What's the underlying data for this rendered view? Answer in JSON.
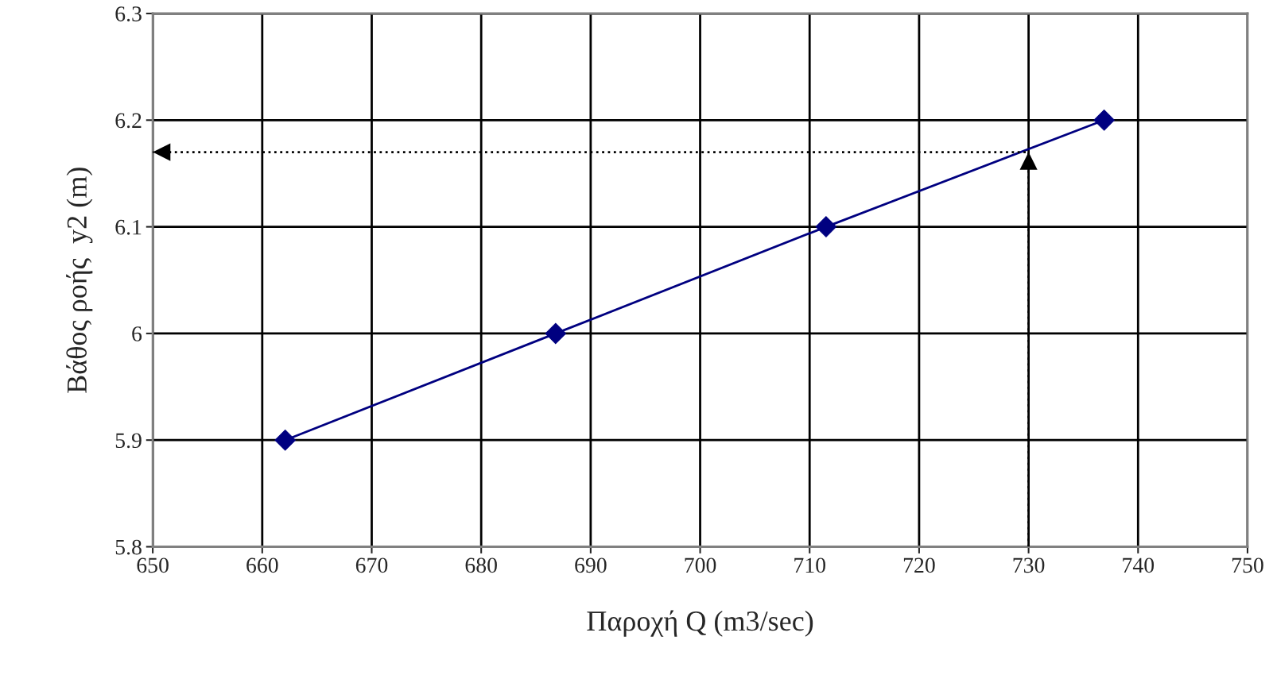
{
  "chart_data": {
    "type": "line",
    "xlabel": "Παροχή Q (m3/sec)",
    "ylabel": "Βάθος ροής  y2 (m)",
    "xlim": [
      650,
      750
    ],
    "xticks": [
      650,
      660,
      670,
      680,
      690,
      700,
      710,
      720,
      730,
      740,
      750
    ],
    "ylim": [
      5.8,
      6.3
    ],
    "yticks": [
      5.8,
      5.9,
      6,
      6.1,
      6.2,
      6.3
    ],
    "grid": true,
    "legend": false,
    "series": [
      {
        "color": "#000080",
        "marker": "diamond",
        "line_style": "solid",
        "x": [
          662.1,
          686.8,
          711.5,
          736.9
        ],
        "values": [
          5.9,
          6.0,
          6.1,
          6.2
        ]
      },
      {
        "color": "#000000",
        "marker": "none",
        "line_style": "dotted",
        "x": [
          730,
          730,
          650
        ],
        "values": [
          5.8,
          6.17,
          6.17
        ]
      }
    ]
  }
}
